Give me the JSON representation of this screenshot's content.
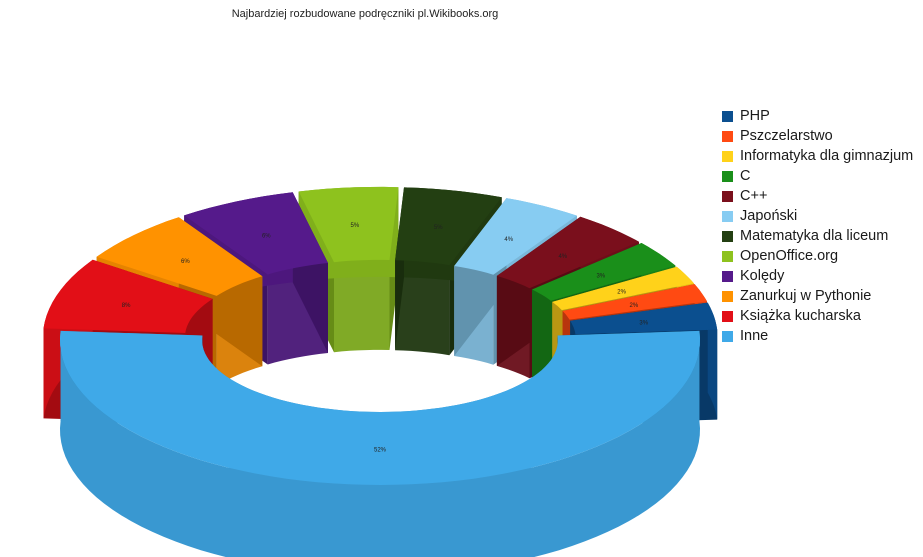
{
  "chart_data": {
    "type": "pie",
    "subtype": "3d-donut",
    "title": "Najbardziej rozbudowane podręczniki pl.Wikibooks.org",
    "legend_position": "right",
    "slices": [
      {
        "label": "PHP",
        "value": 3,
        "value_label": "3%",
        "color": "#0b4f8f"
      },
      {
        "label": "Pszczelarstwo",
        "value": 2,
        "value_label": "2%",
        "color": "#ff4a12"
      },
      {
        "label": "Informatyka dla gimnazjum",
        "value": 2,
        "value_label": "2%",
        "color": "#ffd21a"
      },
      {
        "label": "C",
        "value": 3,
        "value_label": "3%",
        "color": "#1a8f1a"
      },
      {
        "label": "C++",
        "value": 4,
        "value_label": "4%",
        "color": "#7a0f1c"
      },
      {
        "label": "Japoński",
        "value": 4,
        "value_label": "4%",
        "color": "#87ccf2"
      },
      {
        "label": "Matematyka dla liceum",
        "value": 5,
        "value_label": "5%",
        "color": "#233f12"
      },
      {
        "label": "OpenOffice.org",
        "value": 5,
        "value_label": "5%",
        "color": "#8ec21e"
      },
      {
        "label": "Kolędy",
        "value": 6,
        "value_label": "6%",
        "color": "#551a8b"
      },
      {
        "label": "Zanurkuj w Pythonie",
        "value": 6,
        "value_label": "6%",
        "color": "#ff9200"
      },
      {
        "label": "Książka kucharska",
        "value": 8,
        "value_label": "8%",
        "color": "#e20f17"
      },
      {
        "label": "Inne",
        "value": 52,
        "value_label": "52%",
        "color": "#3fa9e8"
      }
    ]
  }
}
